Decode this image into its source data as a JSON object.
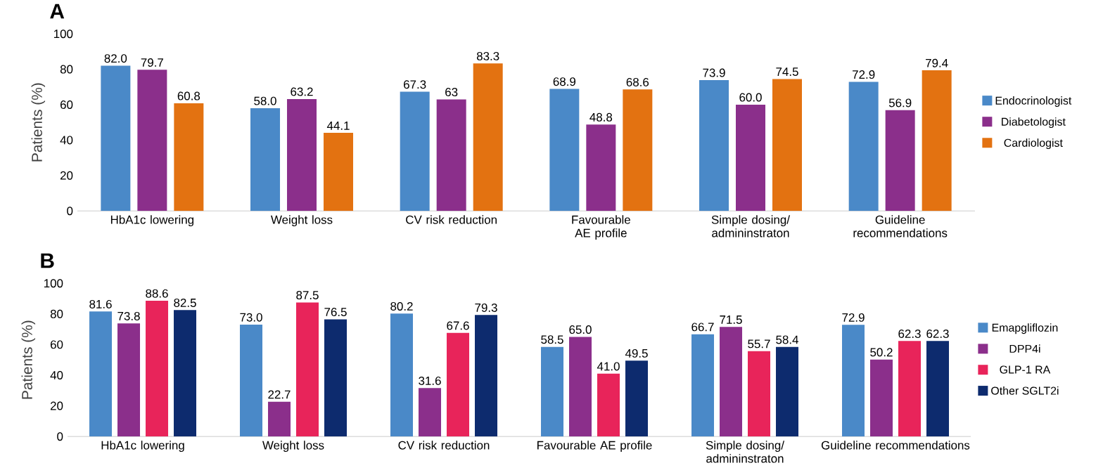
{
  "chart_data": [
    {
      "type": "bar",
      "title": "A",
      "ylabel": "Patients (%)",
      "categories": [
        "HbA1c lowering",
        "Weight loss",
        "CV risk reduction",
        "Favourable AE profile",
        "Simple dosing/ admininstraton",
        "Guideline recommendations"
      ],
      "series": [
        {
          "name": "Endocrinologist",
          "color": "#4a89c8",
          "values": [
            82.0,
            58.0,
            67.3,
            68.9,
            73.9,
            72.9
          ],
          "value_labels": [
            "82.0",
            "58.0",
            "67.3",
            "68.9",
            "73.9",
            "72.9"
          ]
        },
        {
          "name": "Diabetologist",
          "color": "#8b2f8b",
          "values": [
            79.7,
            63.2,
            63,
            48.8,
            60.0,
            56.9
          ],
          "value_labels": [
            "79.7",
            "63.2",
            "63",
            "48.8",
            "60.0",
            "56.9"
          ]
        },
        {
          "name": "Cardiologist",
          "color": "#e37211",
          "values": [
            60.8,
            44.1,
            83.3,
            68.6,
            74.5,
            79.4
          ],
          "value_labels": [
            "60.8",
            "44.1",
            "83.3",
            "68.6",
            "74.5",
            "79.4"
          ]
        }
      ],
      "ylim": [
        0,
        100
      ],
      "yticks": [
        0,
        20,
        40,
        60,
        80,
        100
      ],
      "legend": "right"
    },
    {
      "type": "bar",
      "title": "B",
      "ylabel": "Patients (%)",
      "categories": [
        "HbA1c lowering",
        "Weight loss",
        "CV risk reduction",
        "Favourable AE profile",
        "Simple dosing/ admininstraton",
        "Guideline recommendations"
      ],
      "series": [
        {
          "name": "Emapgliflozin",
          "color": "#4a89c8",
          "values": [
            81.6,
            73.0,
            80.2,
            58.5,
            66.7,
            72.9
          ],
          "value_labels": [
            "81.6",
            "73.0",
            "80.2",
            "58.5",
            "66.7",
            "72.9"
          ]
        },
        {
          "name": "DPP4i",
          "color": "#8b2f8b",
          "values": [
            73.8,
            22.7,
            31.6,
            65.0,
            71.5,
            50.2
          ],
          "value_labels": [
            "73.8",
            "22.7",
            "31.6",
            "65.0",
            "71.5",
            "50.2"
          ]
        },
        {
          "name": "GLP-1 RA",
          "color": "#e8245a",
          "values": [
            88.6,
            87.5,
            67.6,
            41.0,
            55.7,
            62.3
          ],
          "value_labels": [
            "88.6",
            "87.5",
            "67.6",
            "41.0",
            "55.7",
            "62.3"
          ]
        },
        {
          "name": "Other SGLT2i",
          "color": "#0d2b6e",
          "values": [
            82.5,
            76.5,
            79.3,
            49.5,
            58.4,
            62.3
          ],
          "value_labels": [
            "82.5",
            "76.5",
            "79.3",
            "49.5",
            "58.4",
            "62.3"
          ]
        }
      ],
      "ylim": [
        0,
        100
      ],
      "yticks": [
        0,
        20,
        40,
        60,
        80,
        100
      ],
      "legend": "right"
    }
  ]
}
